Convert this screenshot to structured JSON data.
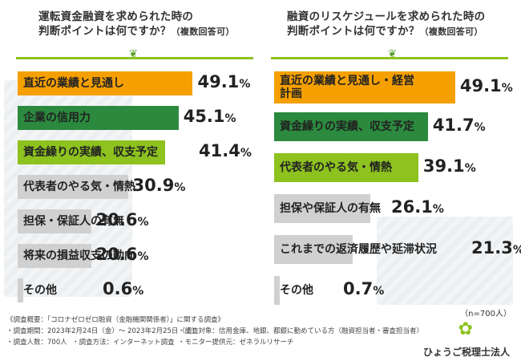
{
  "chart_data": [
    {
      "type": "bar",
      "title": "運転資金融資を求められた時の判断ポイントは何ですか？（複数回答可）",
      "title_line1": "運転資金融資を求められた時の",
      "title_line2": "判断ポイントは何ですか？",
      "title_sub": "（複数回答可）",
      "categories": [
        "直近の業績と見通し",
        "企業の信用力",
        "資金繰りの実績、収支予定",
        "代表者のやる気・情熱",
        "担保・保証人の有無",
        "将来の損益収支の動向",
        "その他"
      ],
      "values": [
        49.1,
        45.1,
        41.4,
        30.9,
        20.6,
        20.6,
        0.6
      ],
      "unit": "%"
    },
    {
      "type": "bar",
      "title": "融資のリスケジュールを求められた時の判断ポイントは何ですか？（複数回答可）",
      "title_line1": "融資のリスケジュールを求められた時の",
      "title_line2": "判断ポイントは何ですか？",
      "title_sub": "（複数回答可）",
      "categories": [
        "直近の業績と見通し・経営計画",
        "資金繰りの実績、収支予定",
        "代表者のやる気・情熱",
        "担保や保証人の有無",
        "これまでの返済履歴や延滞状況",
        "その他"
      ],
      "values": [
        49.1,
        41.7,
        39.1,
        26.1,
        21.3,
        0.7
      ],
      "unit": "%"
    }
  ],
  "colors": {
    "orange": "#f5a000",
    "dark_green": "#2b8a3e",
    "lime": "#8dc21f",
    "gray": "#d0d0d0",
    "accent_leaf": "#5aa02c"
  },
  "sample_note": "（n=700人）",
  "footer": {
    "line1": "《調査概要：「コロナゼロゼロ融資（金融機関関係者）」に関する調査》",
    "period": "・調査期間：2023年2月24日（金）～ 2023年2月25日（土）",
    "target": "・調査対象：信用金庫、地銀、都銀に勤めている方（融資担当者・審査担当者）",
    "people": "・調査人数：700人",
    "method": "・調査方法：インターネット調査",
    "provider": "・モニター提供元：ゼネラルリサーチ"
  },
  "brand": "ひょうご税理士法人"
}
